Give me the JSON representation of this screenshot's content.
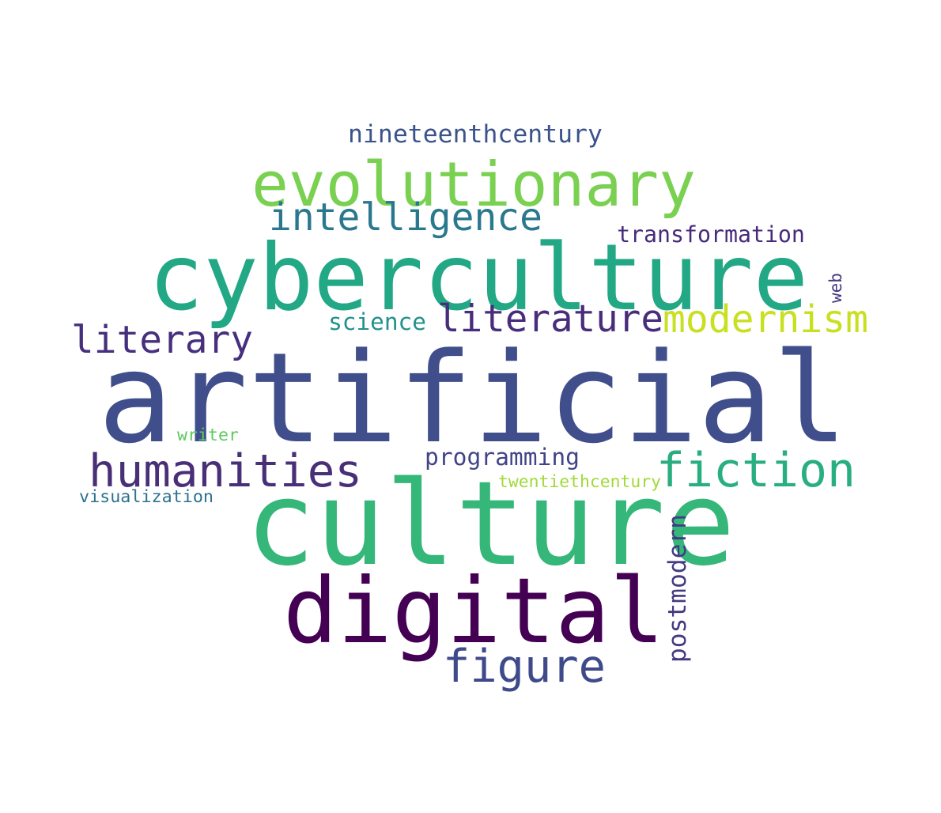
{
  "words": [
    {
      "key": "artificial",
      "text": "artificial",
      "color": "#404f8b"
    },
    {
      "key": "culture",
      "text": "culture",
      "color": "#35b779"
    },
    {
      "key": "cyberculture",
      "text": "cyberculture",
      "color": "#22a884"
    },
    {
      "key": "digital",
      "text": "digital",
      "color": "#440154"
    },
    {
      "key": "evolutionary",
      "text": "evolutionary",
      "color": "#7ad151"
    },
    {
      "key": "humanities",
      "text": "humanities",
      "color": "#482f77"
    },
    {
      "key": "fiction",
      "text": "fiction",
      "color": "#29af7f"
    },
    {
      "key": "figure",
      "text": "figure",
      "color": "#3e4a89"
    },
    {
      "key": "intelligence",
      "text": "intelligence",
      "color": "#2a788e"
    },
    {
      "key": "literature",
      "text": "literature",
      "color": "#472d7b"
    },
    {
      "key": "modernism",
      "text": "modernism",
      "color": "#c8e020"
    },
    {
      "key": "literary",
      "text": "literary",
      "color": "#46307e"
    },
    {
      "key": "postmodern",
      "text": "postmodern",
      "color": "#443a83"
    },
    {
      "key": "nineteenthcentury",
      "text": "nineteenthcentury",
      "color": "#3b528b"
    },
    {
      "key": "transformation",
      "text": "transformation",
      "color": "#472a7a"
    },
    {
      "key": "programming",
      "text": "programming",
      "color": "#414487"
    },
    {
      "key": "science",
      "text": "science",
      "color": "#21918c"
    },
    {
      "key": "twentiethcentury",
      "text": "twentiethcentury",
      "color": "#a0da39"
    },
    {
      "key": "visualization",
      "text": "visualization",
      "color": "#2c728e"
    },
    {
      "key": "writer",
      "text": "writer",
      "color": "#5ec962"
    },
    {
      "key": "web",
      "text": "web",
      "color": "#453781"
    }
  ]
}
